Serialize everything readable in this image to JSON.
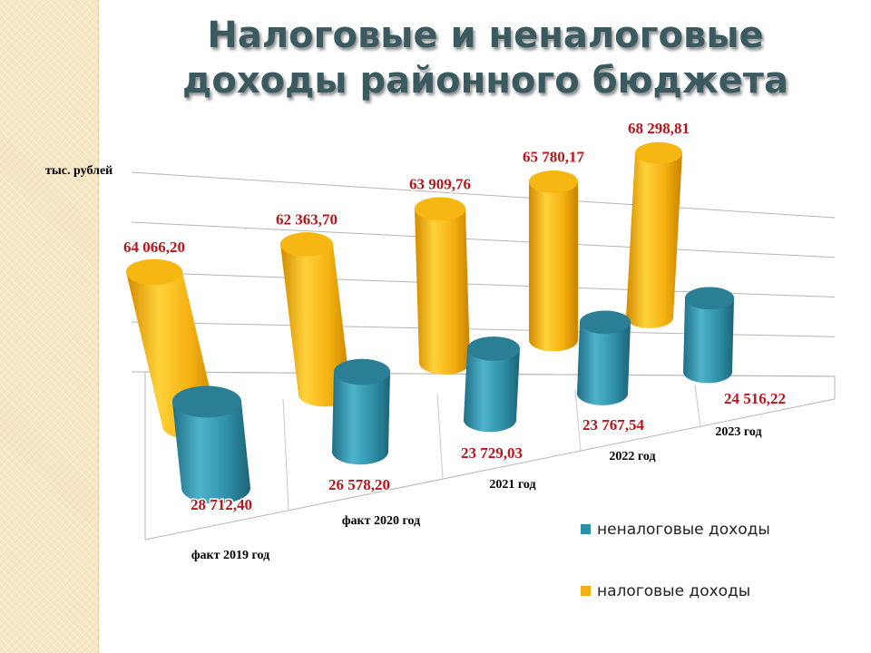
{
  "title": "Налоговые и неналоговые доходы районного бюджета",
  "chart_data": {
    "type": "bar",
    "style": "3d-cylinder",
    "unit_label": "тыс. рублей",
    "categories": [
      "факт 2019 год",
      "факт 2020 год",
      "2021 год",
      "2022 год",
      "2023 год"
    ],
    "series": [
      {
        "name": "неналоговые доходы",
        "color": "#2e90a8",
        "values": [
          28712.4,
          26578.2,
          23729.03,
          23767.54,
          24516.22
        ],
        "labels": [
          "28 712,40",
          "26 578,20",
          "23 729,03",
          "23 767,54",
          "24 516,22"
        ]
      },
      {
        "name": "налоговые доходы",
        "color": "#f2b010",
        "values": [
          64066.2,
          62363.7,
          63909.76,
          65780.17,
          68298.81
        ],
        "labels": [
          "64 066,20",
          "62 363,70",
          "63 909,76",
          "65 780,17",
          "68 298,81"
        ]
      }
    ],
    "legend_position": "bottom-right",
    "grid": true
  }
}
